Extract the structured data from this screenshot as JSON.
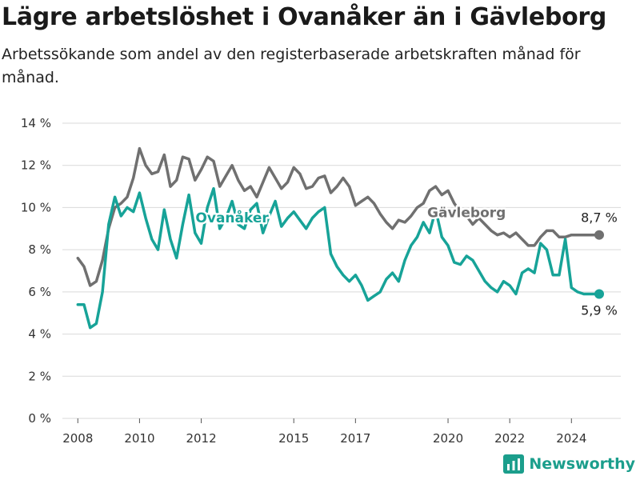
{
  "title": "Lägre arbetslöshet i Ovanåker än i Gävleborg",
  "subtitle": "Arbetssökande som andel av den registerbaserade arbetskraften månad för månad.",
  "brand": {
    "name": "Newsworthy",
    "icon": "newsworthy-bar-chart-icon"
  },
  "colors": {
    "ovanaker": "#17a398",
    "gavleborg": "#707070",
    "grid": "#d9d9d9",
    "brand": "#1b9e8c"
  },
  "chart_data": {
    "type": "line",
    "title": "Lägre arbetslöshet i Ovanåker än i Gävleborg",
    "xlabel": "",
    "ylabel": "",
    "ylim": [
      0,
      14
    ],
    "y_ticks": [
      0,
      2,
      4,
      6,
      8,
      10,
      12,
      14
    ],
    "y_tick_labels": [
      "0 %",
      "2 %",
      "4 %",
      "6 %",
      "8 %",
      "10 %",
      "12 %",
      "14 %"
    ],
    "x_ticks": [
      2008,
      2010,
      2012,
      2015,
      2017,
      2020,
      2022,
      2024
    ],
    "x_tick_labels": [
      "2008",
      "2010",
      "2012",
      "2015",
      "2017",
      "2020",
      "2022",
      "2024"
    ],
    "grid": true,
    "series": [
      {
        "name": "Gävleborg",
        "end_label": "8,7 %",
        "x": [
          2008.0,
          2008.2,
          2008.4,
          2008.6,
          2008.8,
          2009.0,
          2009.2,
          2009.4,
          2009.6,
          2009.8,
          2010.0,
          2010.2,
          2010.4,
          2010.6,
          2010.8,
          2011.0,
          2011.2,
          2011.4,
          2011.6,
          2011.8,
          2012.0,
          2012.2,
          2012.4,
          2012.6,
          2012.8,
          2013.0,
          2013.2,
          2013.4,
          2013.6,
          2013.8,
          2014.0,
          2014.2,
          2014.4,
          2014.6,
          2014.8,
          2015.0,
          2015.2,
          2015.4,
          2015.6,
          2015.8,
          2016.0,
          2016.2,
          2016.4,
          2016.6,
          2016.8,
          2017.0,
          2017.2,
          2017.4,
          2017.6,
          2017.8,
          2018.0,
          2018.2,
          2018.4,
          2018.6,
          2018.8,
          2019.0,
          2019.2,
          2019.4,
          2019.6,
          2019.8,
          2020.0,
          2020.2,
          2020.4,
          2020.6,
          2020.8,
          2021.0,
          2021.2,
          2021.4,
          2021.6,
          2021.8,
          2022.0,
          2022.2,
          2022.4,
          2022.6,
          2022.8,
          2023.0,
          2023.2,
          2023.4,
          2023.6,
          2023.8,
          2024.0,
          2024.2,
          2024.4,
          2024.6,
          2024.9
        ],
        "y": [
          7.6,
          7.2,
          6.3,
          6.5,
          7.5,
          9.0,
          10.0,
          10.2,
          10.5,
          11.4,
          12.8,
          12.0,
          11.6,
          11.7,
          12.5,
          11.0,
          11.3,
          12.4,
          12.3,
          11.3,
          11.8,
          12.4,
          12.2,
          11.0,
          11.5,
          12.0,
          11.3,
          10.8,
          11.0,
          10.5,
          11.2,
          11.9,
          11.4,
          10.9,
          11.2,
          11.9,
          11.6,
          10.9,
          11.0,
          11.4,
          11.5,
          10.7,
          11.0,
          11.4,
          11.0,
          10.1,
          10.3,
          10.5,
          10.2,
          9.7,
          9.3,
          9.0,
          9.4,
          9.3,
          9.6,
          10.0,
          10.2,
          10.8,
          11.0,
          10.6,
          10.8,
          10.2,
          9.8,
          9.6,
          9.2,
          9.5,
          9.2,
          8.9,
          8.7,
          8.8,
          8.6,
          8.8,
          8.5,
          8.2,
          8.2,
          8.6,
          8.9,
          8.9,
          8.6,
          8.6,
          8.7,
          8.7,
          8.7,
          8.7,
          8.7
        ]
      },
      {
        "name": "Ovanåker",
        "end_label": "5,9 %",
        "x": [
          2008.0,
          2008.2,
          2008.4,
          2008.6,
          2008.8,
          2009.0,
          2009.2,
          2009.4,
          2009.6,
          2009.8,
          2010.0,
          2010.2,
          2010.4,
          2010.6,
          2010.8,
          2011.0,
          2011.2,
          2011.4,
          2011.6,
          2011.8,
          2012.0,
          2012.2,
          2012.4,
          2012.6,
          2012.8,
          2013.0,
          2013.2,
          2013.4,
          2013.6,
          2013.8,
          2014.0,
          2014.2,
          2014.4,
          2014.6,
          2014.8,
          2015.0,
          2015.2,
          2015.4,
          2015.6,
          2015.8,
          2016.0,
          2016.2,
          2016.4,
          2016.6,
          2016.8,
          2017.0,
          2017.2,
          2017.4,
          2017.6,
          2017.8,
          2018.0,
          2018.2,
          2018.4,
          2018.6,
          2018.8,
          2019.0,
          2019.2,
          2019.4,
          2019.6,
          2019.8,
          2020.0,
          2020.2,
          2020.4,
          2020.6,
          2020.8,
          2021.0,
          2021.2,
          2021.4,
          2021.6,
          2021.8,
          2022.0,
          2022.2,
          2022.4,
          2022.6,
          2022.8,
          2023.0,
          2023.2,
          2023.4,
          2023.6,
          2023.8,
          2024.0,
          2024.2,
          2024.4,
          2024.6,
          2024.9
        ],
        "y": [
          5.4,
          5.4,
          4.3,
          4.5,
          6.0,
          9.2,
          10.5,
          9.6,
          10.0,
          9.8,
          10.7,
          9.5,
          8.5,
          8.0,
          9.9,
          8.5,
          7.6,
          9.2,
          10.6,
          8.8,
          8.3,
          10.0,
          10.9,
          9.0,
          9.5,
          10.3,
          9.2,
          9.0,
          9.9,
          10.2,
          8.8,
          9.6,
          10.3,
          9.1,
          9.5,
          9.8,
          9.4,
          9.0,
          9.5,
          9.8,
          10.0,
          7.8,
          7.2,
          6.8,
          6.5,
          6.8,
          6.3,
          5.6,
          5.8,
          6.0,
          6.6,
          6.9,
          6.5,
          7.5,
          8.2,
          8.6,
          9.3,
          8.8,
          9.9,
          8.6,
          8.2,
          7.4,
          7.3,
          7.7,
          7.5,
          7.0,
          6.5,
          6.2,
          6.0,
          6.5,
          6.3,
          5.9,
          6.9,
          7.1,
          6.9,
          8.3,
          8.0,
          6.8,
          6.8,
          8.5,
          6.2,
          6.0,
          5.9,
          5.9,
          5.9
        ]
      }
    ]
  }
}
